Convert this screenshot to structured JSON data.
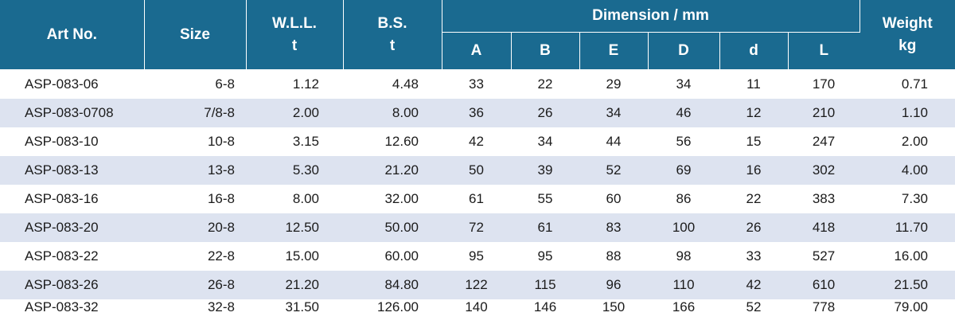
{
  "table": {
    "headers": {
      "art_no": "Art No.",
      "size": "Size",
      "wll": "W.L.L.",
      "wll_unit": "t",
      "bs": "B.S.",
      "bs_unit": "t",
      "dimension": "Dimension / mm",
      "dims": [
        "A",
        "B",
        "E",
        "D",
        "d",
        "L"
      ],
      "weight": "Weight",
      "weight_unit": "kg"
    },
    "rows": [
      {
        "art": "ASP-083-06",
        "size": "6-8",
        "wll": "1.12",
        "bs": "4.48",
        "dims": [
          "33",
          "22",
          "29",
          "34",
          "11",
          "170"
        ],
        "weight": "0.71"
      },
      {
        "art": "ASP-083-0708",
        "size": "7/8-8",
        "wll": "2.00",
        "bs": "8.00",
        "dims": [
          "36",
          "26",
          "34",
          "46",
          "12",
          "210"
        ],
        "weight": "1.10"
      },
      {
        "art": "ASP-083-10",
        "size": "10-8",
        "wll": "3.15",
        "bs": "12.60",
        "dims": [
          "42",
          "34",
          "44",
          "56",
          "15",
          "247"
        ],
        "weight": "2.00"
      },
      {
        "art": "ASP-083-13",
        "size": "13-8",
        "wll": "5.30",
        "bs": "21.20",
        "dims": [
          "50",
          "39",
          "52",
          "69",
          "16",
          "302"
        ],
        "weight": "4.00"
      },
      {
        "art": "ASP-083-16",
        "size": "16-8",
        "wll": "8.00",
        "bs": "32.00",
        "dims": [
          "61",
          "55",
          "60",
          "86",
          "22",
          "383"
        ],
        "weight": "7.30"
      },
      {
        "art": "ASP-083-20",
        "size": "20-8",
        "wll": "12.50",
        "bs": "50.00",
        "dims": [
          "72",
          "61",
          "83",
          "100",
          "26",
          "418"
        ],
        "weight": "11.70"
      },
      {
        "art": "ASP-083-22",
        "size": "22-8",
        "wll": "15.00",
        "bs": "60.00",
        "dims": [
          "95",
          "95",
          "88",
          "98",
          "33",
          "527"
        ],
        "weight": "16.00"
      },
      {
        "art": "ASP-083-26",
        "size": "26-8",
        "wll": "21.20",
        "bs": "84.80",
        "dims": [
          "122",
          "115",
          "96",
          "110",
          "42",
          "610"
        ],
        "weight": "21.50"
      },
      {
        "art": "ASP-083-32",
        "size": "32-8",
        "wll": "31.50",
        "bs": "126.00",
        "dims": [
          "140",
          "146",
          "150",
          "166",
          "52",
          "778"
        ],
        "weight": "79.00"
      }
    ]
  }
}
